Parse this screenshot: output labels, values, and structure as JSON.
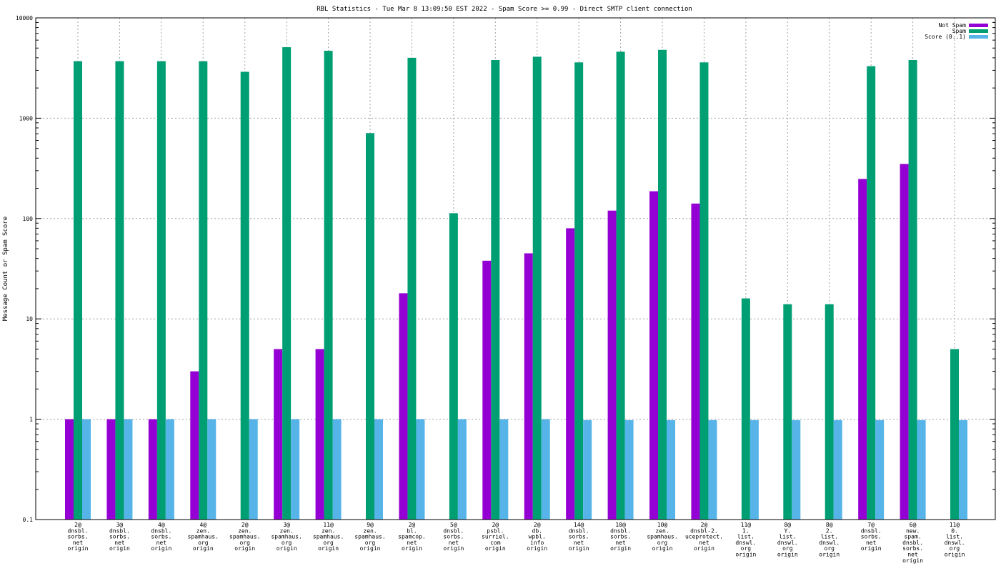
{
  "chart_data": {
    "type": "bar",
    "title": "RBL Statistics - Tue Mar  8 13:09:50 EST 2022 - Spam Score >= 0.99 - Direct SMTP client connection",
    "xlabel": "",
    "ylabel": "Message Count or Spam Score",
    "yscale": "log",
    "ylim": [
      0.1,
      10000
    ],
    "yticks": [
      "10000",
      "1000",
      "100",
      "10",
      "1",
      "0.1"
    ],
    "ytick_values": [
      10000,
      1000,
      100,
      10,
      1,
      0.1
    ],
    "grid": true,
    "legend_position": "top-right",
    "categories": [
      [
        "2@",
        "dnsbl.",
        "sorbs.",
        "net",
        "origin"
      ],
      [
        "3@",
        "dnsbl.",
        "sorbs.",
        "net",
        "origin"
      ],
      [
        "4@",
        "dnsbl.",
        "sorbs.",
        "net",
        "origin"
      ],
      [
        "4@",
        "zen.",
        "spamhaus.",
        "org",
        "origin"
      ],
      [
        "2@",
        "zen.",
        "spamhaus.",
        "org",
        "origin"
      ],
      [
        "3@",
        "zen.",
        "spamhaus.",
        "org",
        "origin"
      ],
      [
        "11@",
        "zen.",
        "spamhaus.",
        "org",
        "origin"
      ],
      [
        "9@",
        "zen.",
        "spamhaus.",
        "org",
        "origin"
      ],
      [
        "2@",
        "bl.",
        "spamcop.",
        "net",
        "origin"
      ],
      [
        "5@",
        "dnsbl.",
        "sorbs.",
        "net",
        "origin"
      ],
      [
        "2@",
        "psbl.",
        "surriel.",
        "com",
        "origin"
      ],
      [
        "2@",
        "db.",
        "wpbl.",
        "info",
        "origin"
      ],
      [
        "14@",
        "dnsbl.",
        "sorbs.",
        "net",
        "origin"
      ],
      [
        "10@",
        "dnsbl.",
        "sorbs.",
        "net",
        "origin"
      ],
      [
        "10@",
        "zen.",
        "spamhaus.",
        "org",
        "origin"
      ],
      [
        "2@",
        "dnsbl-2.",
        "uceprotect.",
        "net",
        "origin"
      ],
      [
        "11@",
        "1.",
        "list.",
        "dnswl.",
        "org",
        "origin"
      ],
      [
        "8@",
        "Y.",
        "list.",
        "dnswl.",
        "org",
        "origin"
      ],
      [
        "8@",
        "2.",
        "list.",
        "dnswl.",
        "org",
        "origin"
      ],
      [
        "7@",
        "dnsbl.",
        "sorbs.",
        "net",
        "origin"
      ],
      [
        "6@",
        "new.",
        "spam.",
        "dnsbl.",
        "sorbs.",
        "net",
        "origin"
      ],
      [
        "11@",
        "0.",
        "list.",
        "dnswl.",
        "org",
        "origin"
      ]
    ],
    "series": [
      {
        "name": "Not Spam",
        "color": "#9400d3",
        "values": [
          1,
          1,
          1,
          3,
          null,
          5,
          5,
          null,
          18,
          null,
          38,
          45,
          80,
          120,
          187,
          141,
          null,
          null,
          null,
          248,
          350,
          null
        ]
      },
      {
        "name": "Spam",
        "color": "#009e73",
        "values": [
          3700,
          3700,
          3700,
          3700,
          2900,
          5100,
          4700,
          710,
          4000,
          113,
          3800,
          4100,
          3600,
          4600,
          4800,
          3600,
          16,
          14,
          14,
          3300,
          3800,
          5
        ]
      },
      {
        "name": "Score (0..1)",
        "color": "#56b4e9",
        "values": [
          1,
          1,
          1,
          1,
          1,
          1,
          1,
          1,
          1,
          1,
          1,
          1,
          0.98,
          0.98,
          0.98,
          0.98,
          0.98,
          0.98,
          0.98,
          0.98,
          0.98,
          0.98
        ]
      }
    ]
  }
}
